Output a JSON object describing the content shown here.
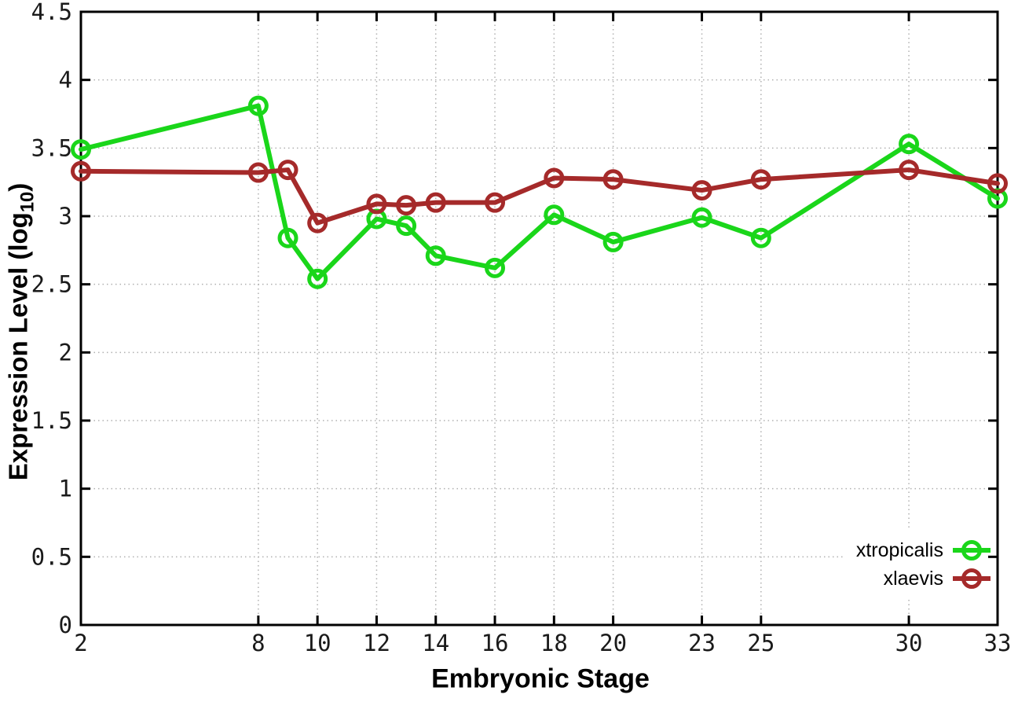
{
  "chart_data": {
    "type": "line",
    "title": "",
    "xlabel": "Embryonic Stage",
    "ylabel": "Expression Level (log10)",
    "ylabel_parts": {
      "main": "Expression Level (log",
      "sub": "10",
      "suffix": ")"
    },
    "xlim": [
      2,
      33
    ],
    "ylim": [
      0,
      4.5
    ],
    "x": [
      2,
      8,
      9,
      10,
      12,
      13,
      14,
      16,
      18,
      20,
      23,
      25,
      30,
      33
    ],
    "xticks": [
      2,
      8,
      10,
      12,
      14,
      16,
      18,
      20,
      23,
      25,
      30,
      33
    ],
    "xtick_labels": [
      "2",
      "8",
      "10",
      "12",
      "14",
      "16",
      "18",
      "20",
      "23",
      "25",
      "30",
      "33"
    ],
    "yticks": [
      0,
      0.5,
      1,
      1.5,
      2,
      2.5,
      3,
      3.5,
      4,
      4.5
    ],
    "ytick_labels": [
      "0",
      "0.5",
      "1",
      "1.5",
      "2",
      "2.5",
      "3",
      "3.5",
      "4",
      "4.5"
    ],
    "grid": "dotted",
    "legend": {
      "position": "inside-bottom-right",
      "entries": [
        "xtropicalis",
        "xlaevis"
      ]
    },
    "series": [
      {
        "name": "xtropicalis",
        "color": "#1ad61a",
        "marker": "open-circle",
        "values": [
          3.49,
          3.81,
          2.84,
          2.54,
          2.98,
          2.93,
          2.71,
          2.62,
          3.01,
          2.81,
          2.99,
          2.84,
          3.53,
          3.13
        ]
      },
      {
        "name": "xlaevis",
        "color": "#a52a2a",
        "marker": "open-circle",
        "values": [
          3.33,
          3.32,
          3.34,
          2.95,
          3.09,
          3.08,
          3.1,
          3.1,
          3.28,
          3.27,
          3.19,
          3.27,
          3.34,
          3.24
        ]
      }
    ],
    "colors": {
      "grid": "#b0b0b0",
      "axis": "#000000",
      "background": "#ffffff",
      "text": "#000000"
    }
  }
}
